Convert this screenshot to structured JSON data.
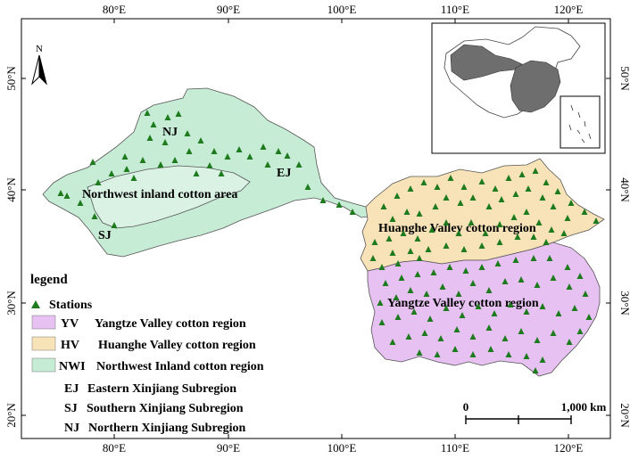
{
  "axes": {
    "top": [
      "80°E",
      "90°E",
      "100°E",
      "110°E",
      "120°E"
    ],
    "bottom": [
      "80°E",
      "90°E",
      "100°E",
      "110°E",
      "120°E"
    ],
    "left": [
      "50°N",
      "40°N",
      "30°N",
      "20°N"
    ],
    "right": [
      "50°N",
      "40°N",
      "30°N",
      "20°N"
    ]
  },
  "north_arrow": "N",
  "regions": {
    "nwi": "Northwest inland cotton area",
    "hv": "Huanghe Valley cotton region",
    "yv": "Yangtze Valley cotton region",
    "nj": "NJ",
    "ej": "EJ",
    "sj": "SJ"
  },
  "colors": {
    "nwi": "#c7ecd6",
    "hv": "#f8e3b8",
    "yv": "#e6c1f1",
    "station": "#1d7a1d",
    "inset_fill": "#6e6e6e"
  },
  "legend": {
    "title": "legend",
    "stations": "Stations",
    "items": [
      {
        "code": "YV",
        "text": "Yangtze Valley cotton region"
      },
      {
        "code": "HV",
        "text": "Huanghe Valley cotton region"
      },
      {
        "code": "NWI",
        "text": "Northwest Inland cotton region"
      },
      {
        "code": "EJ",
        "text": "Eastern Xinjiang Subregion"
      },
      {
        "code": "SJ",
        "text": "Southern Xinjiang Subregion"
      },
      {
        "code": "NJ",
        "text": "Northern Xinjiang Subregion"
      }
    ]
  },
  "scale": {
    "start": "0",
    "end": "1,000 km"
  }
}
